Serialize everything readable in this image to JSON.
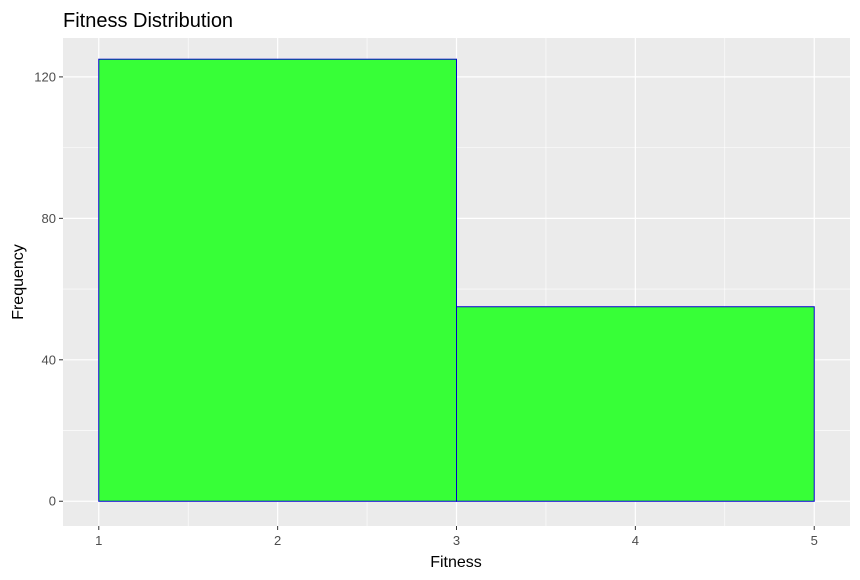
{
  "chart_data": {
    "type": "bar",
    "subtype": "histogram",
    "title": "Fitness Distribution",
    "xlabel": "Fitness",
    "ylabel": "Frequency",
    "bins": [
      {
        "x_start": 1,
        "x_end": 3,
        "count": 125
      },
      {
        "x_start": 3,
        "x_end": 5,
        "count": 55
      }
    ],
    "xlim": [
      0.8,
      5.2
    ],
    "ylim": [
      -7,
      131
    ],
    "x_ticks": [
      1,
      2,
      3,
      4,
      5
    ],
    "y_ticks": [
      0,
      40,
      80,
      120
    ],
    "grid": true,
    "legend": "none",
    "colors": {
      "bar_fill": "#33ff33",
      "bar_stroke": "#0000cc",
      "panel_background": "#ebebeb",
      "grid_major": "#ffffff",
      "tick_label": "#4d4d4d"
    }
  }
}
